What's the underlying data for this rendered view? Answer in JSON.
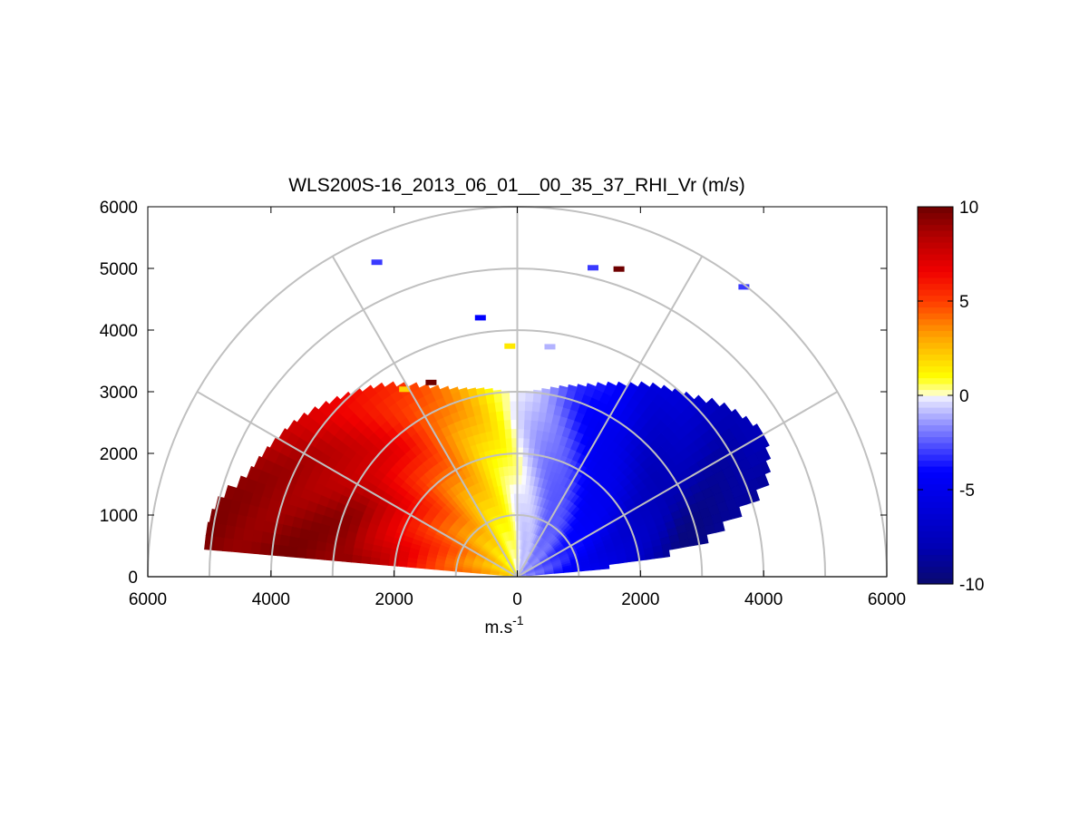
{
  "chart_data": {
    "type": "heatmap",
    "subtype": "polar RHI scan (semicircle)",
    "title": "WLS200S-16_2013_06_01__00_35_37_RHI_Vr (m/s)",
    "xlabel": "m.s",
    "xlabel_superscript": "-1",
    "ylabel": "",
    "xlim": [
      -6000,
      6000
    ],
    "ylim": [
      0,
      6000
    ],
    "x_tick_labels": [
      "6000",
      "4000",
      "2000",
      "0",
      "2000",
      "4000",
      "6000"
    ],
    "x_tick_values": [
      -6000,
      -4000,
      -2000,
      0,
      2000,
      4000,
      6000
    ],
    "y_tick_labels": [
      "0",
      "1000",
      "2000",
      "3000",
      "4000",
      "5000",
      "6000"
    ],
    "y_tick_values": [
      0,
      1000,
      2000,
      3000,
      4000,
      5000,
      6000
    ],
    "polar_grid": {
      "range_rings": [
        1000,
        2000,
        3000,
        4000,
        5000,
        6000
      ],
      "spokes_deg": [
        0,
        30,
        60,
        90,
        120,
        150,
        180
      ],
      "color": "#c0c0c0"
    },
    "scan": {
      "min_elevation_deg": 5,
      "max_elevation_deg": 175,
      "main_coverage_range_m": [
        [
          5,
          1000
        ],
        [
          10,
          3000
        ],
        [
          15,
          3600
        ],
        [
          20,
          4300
        ],
        [
          25,
          4500
        ],
        [
          30,
          4650
        ],
        [
          35,
          4500
        ],
        [
          40,
          4350
        ],
        [
          45,
          4100
        ],
        [
          50,
          3950
        ],
        [
          55,
          3800
        ],
        [
          60,
          3600
        ],
        [
          65,
          3450
        ],
        [
          70,
          3300
        ],
        [
          75,
          3200
        ],
        [
          80,
          3100
        ],
        [
          85,
          3020
        ],
        [
          90,
          3000
        ],
        [
          95,
          3020
        ],
        [
          100,
          3100
        ],
        [
          105,
          3150
        ],
        [
          110,
          3250
        ],
        [
          115,
          3400
        ],
        [
          120,
          3600
        ],
        [
          125,
          3800
        ],
        [
          130,
          3950
        ],
        [
          135,
          4100
        ],
        [
          140,
          4250
        ],
        [
          145,
          4400
        ],
        [
          150,
          4500
        ],
        [
          155,
          4600
        ],
        [
          160,
          4700
        ],
        [
          165,
          5000
        ],
        [
          170,
          5100
        ],
        [
          175,
          5100
        ]
      ],
      "velocity_model": "Vr ≈ -9.5 · cos(elevation) · min(1, 0.15 + range/3300) m/s (negative toward right/east, positive toward left/west)"
    },
    "isolated_cells": [
      {
        "x": -2280,
        "y": 5100,
        "vr": -3
      },
      {
        "x": -600,
        "y": 4200,
        "vr": -4
      },
      {
        "x": -120,
        "y": 3740,
        "vr": 1.5
      },
      {
        "x": 530,
        "y": 3730,
        "vr": -1
      },
      {
        "x": 1230,
        "y": 5010,
        "vr": -3
      },
      {
        "x": 1650,
        "y": 4990,
        "vr": 10
      },
      {
        "x": 3680,
        "y": 4700,
        "vr": -3
      },
      {
        "x": -1400,
        "y": 3150,
        "vr": 10
      },
      {
        "x": -1830,
        "y": 3040,
        "vr": 2
      }
    ],
    "colorbar": {
      "range": [
        -10,
        10
      ],
      "tick_labels": [
        "10",
        "5",
        "0",
        "-5",
        "-10"
      ],
      "tick_values": [
        10,
        5,
        0,
        -5,
        -10
      ],
      "colormap": [
        [
          0.0,
          "#0a0a6e"
        ],
        [
          0.1,
          "#0000b4"
        ],
        [
          0.3,
          "#0000ff"
        ],
        [
          0.42,
          "#8c8cff"
        ],
        [
          0.49,
          "#e6e6ff"
        ],
        [
          0.5,
          "#ffffff"
        ],
        [
          0.51,
          "#ffffa0"
        ],
        [
          0.55,
          "#ffff00"
        ],
        [
          0.66,
          "#ffa000"
        ],
        [
          0.75,
          "#ff3c00"
        ],
        [
          0.83,
          "#f00000"
        ],
        [
          0.92,
          "#b40000"
        ],
        [
          1.0,
          "#6e0000"
        ]
      ]
    }
  }
}
